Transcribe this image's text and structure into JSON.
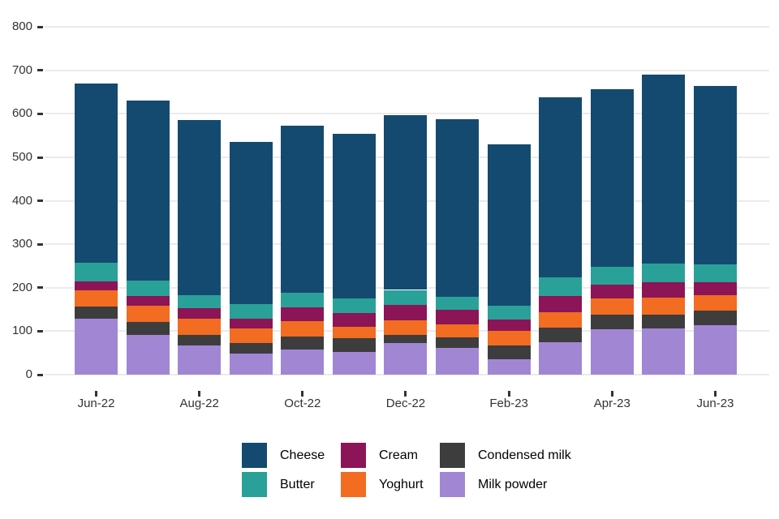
{
  "chart_data": {
    "type": "bar",
    "stacked": true,
    "title": "",
    "xlabel": "",
    "ylabel": "",
    "categories": [
      "Jun-22",
      "Jul-22",
      "Aug-22",
      "Sep-22",
      "Oct-22",
      "Nov-22",
      "Dec-22",
      "Jan-23",
      "Feb-23",
      "Mar-23",
      "Apr-23",
      "May-23",
      "Jun-23"
    ],
    "series": [
      {
        "name": "Milk powder",
        "color": "#a186d4",
        "values": [
          129,
          91,
          67,
          48,
          58,
          53,
          72,
          61,
          36,
          75,
          104,
          106,
          114
        ]
      },
      {
        "name": "Condensed milk",
        "color": "#3d3d3d",
        "values": [
          28,
          31,
          25,
          24,
          30,
          31,
          20,
          24,
          31,
          33,
          34,
          33,
          33
        ]
      },
      {
        "name": "Yoghurt",
        "color": "#f26c21",
        "values": [
          37,
          37,
          37,
          34,
          35,
          26,
          33,
          31,
          34,
          36,
          37,
          39,
          36
        ]
      },
      {
        "name": "Cream",
        "color": "#8b1556",
        "values": [
          21,
          22,
          24,
          23,
          32,
          32,
          35,
          34,
          26,
          37,
          33,
          34,
          30
        ]
      },
      {
        "name": "Butter",
        "color": "#2aa198",
        "values": [
          42,
          35,
          30,
          33,
          34,
          33,
          35,
          30,
          31,
          42,
          40,
          44,
          41
        ]
      },
      {
        "name": "Cheese",
        "color": "#144a6f",
        "values": [
          413,
          414,
          402,
          373,
          383,
          379,
          402,
          407,
          371,
          416,
          408,
          434,
          410
        ]
      }
    ],
    "totals": [
      670,
      630,
      585,
      535,
      572,
      554,
      597,
      587,
      529,
      639,
      656,
      690,
      664
    ],
    "y_axis": {
      "min": 0,
      "max": 800,
      "ticks": [
        0,
        100,
        200,
        300,
        400,
        500,
        600,
        700,
        800
      ],
      "tick_labels": [
        "0",
        "100",
        "200",
        "300",
        "400",
        "500",
        "600",
        "700",
        "800"
      ]
    },
    "x_axis": {
      "tick_labels": [
        "Jun-22",
        "Aug-22",
        "Oct-22",
        "Dec-22",
        "Feb-23",
        "Apr-23",
        "Jun-23"
      ],
      "tick_indices": [
        0,
        2,
        4,
        6,
        8,
        10,
        12
      ]
    },
    "grid": true,
    "legend": {
      "position": "bottom",
      "items": [
        {
          "label": "Cheese",
          "color": "#144a6f"
        },
        {
          "label": "Cream",
          "color": "#8b1556"
        },
        {
          "label": "Condensed milk",
          "color": "#3d3d3d"
        },
        {
          "label": "Butter",
          "color": "#2aa198"
        },
        {
          "label": "Yoghurt",
          "color": "#f26c21"
        },
        {
          "label": "Milk powder",
          "color": "#a186d4"
        }
      ]
    },
    "colors": {
      "gridline": "#ebebeb",
      "axis_text": "#333333",
      "legend_text": "#000000",
      "background": "#ffffff"
    }
  }
}
